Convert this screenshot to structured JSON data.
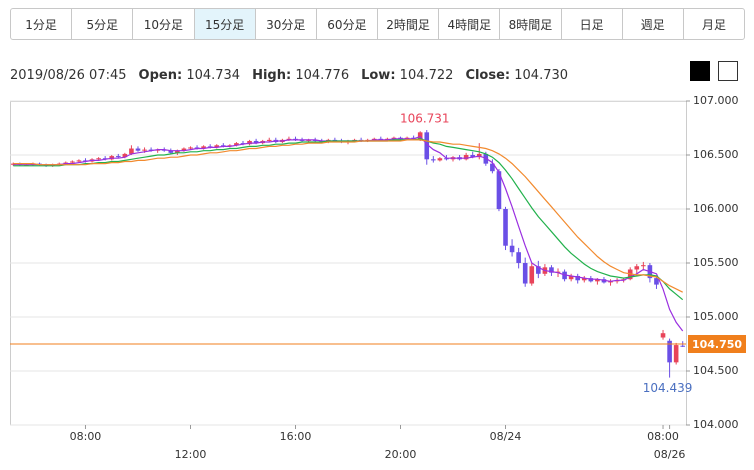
{
  "tabs": [
    "1分足",
    "5分足",
    "10分足",
    "15分足",
    "30分足",
    "60分足",
    "2時間足",
    "4時間足",
    "8時間足",
    "日足",
    "週足",
    "月足"
  ],
  "active_tab": "15分足",
  "ohlc_header": {
    "datetime": "2019/08/26 07:45",
    "items": [
      {
        "label": "Open:",
        "value": "104.734"
      },
      {
        "label": "High:",
        "value": "104.776"
      },
      {
        "label": "Low:",
        "value": "104.722"
      },
      {
        "label": "Close:",
        "value": "104.730"
      }
    ]
  },
  "chart_data": {
    "type": "candlestick",
    "categories": [
      null,
      null,
      null,
      null,
      null,
      null,
      null,
      null,
      null,
      null,
      null,
      "08:00",
      null,
      null,
      null,
      null,
      null,
      null,
      null,
      null,
      null,
      null,
      null,
      null,
      null,
      null,
      null,
      "12:00",
      null,
      null,
      null,
      null,
      null,
      null,
      null,
      null,
      null,
      null,
      null,
      null,
      null,
      null,
      null,
      "16:00",
      null,
      null,
      null,
      null,
      null,
      null,
      null,
      null,
      null,
      null,
      null,
      null,
      null,
      null,
      null,
      "20:00",
      null,
      null,
      null,
      null,
      null,
      null,
      null,
      null,
      null,
      null,
      null,
      null,
      null,
      null,
      null,
      "08/24",
      null,
      null,
      null,
      null,
      null,
      null,
      null,
      null,
      null,
      null,
      null,
      null,
      null,
      null,
      null,
      null,
      null,
      null,
      null,
      null,
      null,
      null,
      null,
      "08:00",
      "08/26",
      null,
      null
    ],
    "open": [
      106.41,
      106.42,
      106.41,
      106.41,
      106.42,
      106.41,
      106.4,
      106.41,
      106.42,
      106.43,
      106.44,
      106.45,
      106.44,
      106.46,
      106.47,
      106.46,
      106.49,
      106.48,
      106.51,
      106.56,
      106.54,
      106.55,
      106.54,
      106.55,
      106.54,
      106.52,
      106.54,
      106.56,
      106.57,
      106.56,
      106.58,
      106.57,
      106.59,
      106.58,
      106.59,
      106.61,
      106.6,
      106.63,
      106.61,
      106.63,
      106.64,
      106.62,
      106.64,
      106.65,
      106.64,
      106.63,
      106.64,
      106.63,
      106.62,
      106.64,
      106.63,
      106.62,
      106.63,
      106.64,
      106.63,
      106.64,
      106.65,
      106.64,
      106.65,
      106.66,
      106.65,
      106.66,
      106.64,
      106.71,
      106.46,
      106.45,
      106.47,
      106.46,
      106.48,
      106.46,
      106.5,
      106.48,
      106.51,
      106.42,
      106.35,
      106.0,
      105.66,
      105.6,
      105.5,
      105.31,
      105.47,
      105.4,
      105.46,
      105.41,
      105.42,
      105.35,
      105.38,
      105.34,
      105.36,
      105.33,
      105.35,
      105.32,
      105.33,
      105.34,
      105.35,
      105.44,
      105.47,
      105.48,
      105.36,
      104.81,
      104.78,
      104.58,
      104.734
    ],
    "high": [
      106.43,
      106.43,
      106.42,
      106.43,
      106.43,
      106.42,
      106.42,
      106.43,
      106.44,
      106.45,
      106.46,
      106.47,
      106.47,
      106.48,
      106.49,
      106.5,
      106.51,
      106.52,
      106.59,
      106.58,
      106.57,
      106.57,
      106.56,
      106.57,
      106.56,
      106.55,
      106.57,
      106.58,
      106.59,
      106.59,
      106.6,
      106.6,
      106.61,
      106.6,
      106.62,
      106.63,
      106.64,
      106.65,
      106.64,
      106.66,
      106.66,
      106.65,
      106.67,
      106.67,
      106.66,
      106.65,
      106.66,
      106.65,
      106.65,
      106.66,
      106.65,
      106.64,
      106.65,
      106.66,
      106.65,
      106.66,
      106.67,
      106.66,
      106.67,
      106.67,
      106.67,
      106.68,
      106.72,
      106.731,
      106.49,
      106.48,
      106.5,
      106.49,
      106.5,
      106.52,
      106.53,
      106.61,
      106.53,
      106.46,
      106.37,
      106.02,
      105.72,
      105.64,
      105.55,
      105.5,
      105.52,
      105.49,
      105.48,
      105.45,
      105.44,
      105.4,
      105.4,
      105.38,
      105.38,
      105.36,
      105.37,
      105.35,
      105.36,
      105.36,
      105.46,
      105.49,
      105.51,
      105.5,
      105.38,
      104.88,
      104.8,
      104.76,
      104.776
    ],
    "low": [
      106.4,
      106.4,
      106.4,
      106.4,
      106.4,
      106.39,
      106.39,
      106.4,
      106.41,
      106.42,
      106.43,
      106.43,
      106.43,
      106.45,
      106.45,
      106.45,
      106.47,
      106.47,
      106.5,
      106.53,
      106.52,
      106.53,
      106.52,
      106.53,
      106.51,
      106.5,
      106.53,
      106.55,
      106.55,
      106.55,
      106.56,
      106.56,
      106.57,
      106.57,
      106.58,
      106.59,
      106.59,
      106.6,
      106.6,
      106.62,
      106.61,
      106.61,
      106.63,
      106.63,
      106.62,
      106.61,
      106.62,
      106.61,
      106.61,
      106.62,
      106.61,
      106.6,
      106.62,
      106.62,
      106.62,
      106.63,
      106.63,
      106.63,
      106.64,
      106.64,
      106.64,
      106.64,
      106.63,
      106.41,
      106.43,
      106.44,
      106.45,
      106.44,
      106.45,
      106.45,
      106.47,
      106.46,
      106.4,
      106.33,
      105.98,
      105.62,
      105.56,
      105.45,
      105.28,
      105.29,
      105.36,
      105.38,
      105.38,
      105.37,
      105.33,
      105.33,
      105.31,
      105.32,
      105.32,
      105.3,
      105.31,
      105.29,
      105.31,
      105.32,
      105.34,
      105.4,
      105.43,
      105.32,
      105.26,
      104.79,
      104.439,
      104.56,
      104.722
    ],
    "close": [
      106.42,
      106.41,
      106.41,
      106.42,
      106.41,
      106.4,
      106.41,
      106.42,
      106.43,
      106.44,
      106.45,
      106.44,
      106.46,
      106.47,
      106.46,
      106.49,
      106.48,
      106.51,
      106.56,
      106.54,
      106.55,
      106.54,
      106.55,
      106.54,
      106.52,
      106.54,
      106.56,
      106.57,
      106.56,
      106.58,
      106.57,
      106.59,
      106.58,
      106.59,
      106.61,
      106.6,
      106.63,
      106.61,
      106.63,
      106.64,
      106.62,
      106.64,
      106.65,
      106.64,
      106.63,
      106.64,
      106.63,
      106.62,
      106.64,
      106.63,
      106.62,
      106.63,
      106.64,
      106.63,
      106.64,
      106.65,
      106.64,
      106.65,
      106.66,
      106.65,
      106.66,
      106.65,
      106.71,
      106.46,
      106.45,
      106.47,
      106.46,
      106.48,
      106.46,
      106.5,
      106.48,
      106.51,
      106.42,
      106.35,
      106.0,
      105.66,
      105.6,
      105.5,
      105.31,
      105.47,
      105.4,
      105.46,
      105.41,
      105.42,
      105.35,
      105.38,
      105.34,
      105.36,
      105.33,
      105.35,
      105.32,
      105.33,
      105.34,
      105.35,
      105.44,
      105.47,
      105.48,
      105.36,
      105.3,
      104.85,
      104.58,
      104.74,
      104.73
    ],
    "up_color": "#e8445a",
    "down_color": "#6a4fe6",
    "series": [
      {
        "color": "#9a2fe0",
        "values": [
          106.41,
          106.41,
          106.41,
          106.41,
          106.41,
          106.41,
          106.41,
          106.41,
          106.42,
          106.42,
          106.43,
          106.44,
          106.45,
          106.45,
          106.46,
          106.47,
          106.47,
          106.48,
          106.51,
          106.52,
          106.53,
          106.54,
          106.55,
          106.55,
          106.54,
          106.54,
          106.54,
          106.55,
          106.56,
          106.56,
          106.57,
          106.57,
          106.58,
          106.58,
          106.59,
          106.6,
          106.61,
          106.61,
          106.62,
          106.62,
          106.63,
          106.63,
          106.64,
          106.64,
          106.64,
          106.64,
          106.64,
          106.63,
          106.63,
          106.63,
          106.63,
          106.63,
          106.63,
          106.63,
          106.63,
          106.64,
          106.64,
          106.64,
          106.65,
          106.65,
          106.65,
          106.65,
          106.67,
          106.6,
          106.55,
          106.52,
          106.47,
          106.47,
          106.47,
          106.47,
          106.48,
          106.49,
          106.47,
          106.43,
          106.34,
          106.19,
          106.02,
          105.84,
          105.66,
          105.5,
          105.46,
          105.43,
          105.42,
          105.41,
          105.39,
          105.38,
          105.37,
          105.36,
          105.35,
          105.35,
          105.34,
          105.33,
          105.34,
          105.34,
          105.37,
          105.4,
          105.44,
          105.42,
          105.4,
          105.26,
          105.07,
          104.95,
          104.87
        ]
      },
      {
        "color": "#22b14c",
        "values": [
          106.4,
          106.4,
          106.4,
          106.4,
          106.4,
          106.4,
          106.4,
          106.4,
          106.41,
          106.41,
          106.41,
          106.42,
          106.42,
          106.43,
          106.43,
          106.44,
          106.44,
          106.45,
          106.46,
          106.47,
          106.48,
          106.49,
          106.5,
          106.5,
          106.51,
          106.52,
          106.52,
          106.53,
          106.53,
          106.54,
          106.54,
          106.55,
          106.55,
          106.56,
          106.56,
          106.57,
          106.58,
          106.58,
          106.59,
          106.59,
          106.6,
          106.6,
          106.61,
          106.61,
          106.62,
          106.62,
          106.62,
          106.62,
          106.63,
          106.63,
          106.63,
          106.63,
          106.63,
          106.63,
          106.63,
          106.63,
          106.63,
          106.63,
          106.64,
          106.64,
          106.64,
          106.64,
          106.65,
          106.63,
          106.61,
          106.6,
          106.58,
          106.57,
          106.56,
          106.55,
          106.54,
          106.53,
          106.51,
          106.48,
          106.43,
          106.36,
          106.28,
          106.19,
          106.1,
          106.01,
          105.93,
          105.86,
          105.79,
          105.72,
          105.65,
          105.59,
          105.54,
          105.49,
          105.45,
          105.42,
          105.4,
          105.38,
          105.37,
          105.36,
          105.37,
          105.38,
          105.39,
          105.39,
          105.38,
          105.33,
          105.26,
          105.21,
          105.16
        ]
      },
      {
        "color": "#f28a2e",
        "values": [
          106.42,
          106.42,
          106.42,
          106.42,
          106.41,
          106.41,
          106.41,
          106.41,
          106.41,
          106.41,
          106.41,
          106.41,
          106.42,
          106.42,
          106.42,
          106.43,
          106.43,
          106.44,
          106.44,
          106.45,
          106.45,
          106.46,
          106.47,
          106.47,
          106.48,
          106.48,
          106.49,
          106.5,
          106.5,
          106.51,
          106.52,
          106.52,
          106.53,
          106.54,
          106.54,
          106.55,
          106.56,
          106.56,
          106.57,
          106.58,
          106.58,
          106.59,
          106.59,
          106.6,
          106.6,
          106.61,
          106.61,
          106.61,
          106.62,
          106.62,
          106.62,
          106.62,
          106.62,
          106.63,
          106.63,
          106.63,
          106.63,
          106.63,
          106.63,
          106.63,
          106.64,
          106.64,
          106.64,
          106.63,
          106.62,
          106.62,
          106.61,
          106.6,
          106.6,
          106.59,
          106.58,
          106.57,
          106.56,
          106.54,
          106.51,
          106.47,
          106.42,
          106.36,
          106.3,
          106.23,
          106.16,
          106.09,
          106.02,
          105.95,
          105.88,
          105.81,
          105.74,
          105.68,
          105.62,
          105.56,
          105.51,
          105.47,
          105.44,
          105.41,
          105.4,
          105.39,
          105.39,
          105.38,
          105.37,
          105.33,
          105.29,
          105.26,
          105.23
        ]
      }
    ],
    "ylim": [
      104,
      107
    ],
    "yticks": [
      {
        "value": 104,
        "label": "104.000"
      },
      {
        "value": 104.5,
        "label": "104.500"
      },
      {
        "value": 105,
        "label": "105.000"
      },
      {
        "value": 105.5,
        "label": "105.500"
      },
      {
        "value": 106,
        "label": "106.000"
      },
      {
        "value": 106.5,
        "label": "106.500"
      },
      {
        "value": 107,
        "label": "107.000"
      }
    ],
    "grid": true,
    "current_price": {
      "value": 104.75,
      "label": "104.750",
      "color": "#f07f1c"
    },
    "high_label_color": "#e8445a",
    "low_label_color": "#4a6fc0"
  }
}
